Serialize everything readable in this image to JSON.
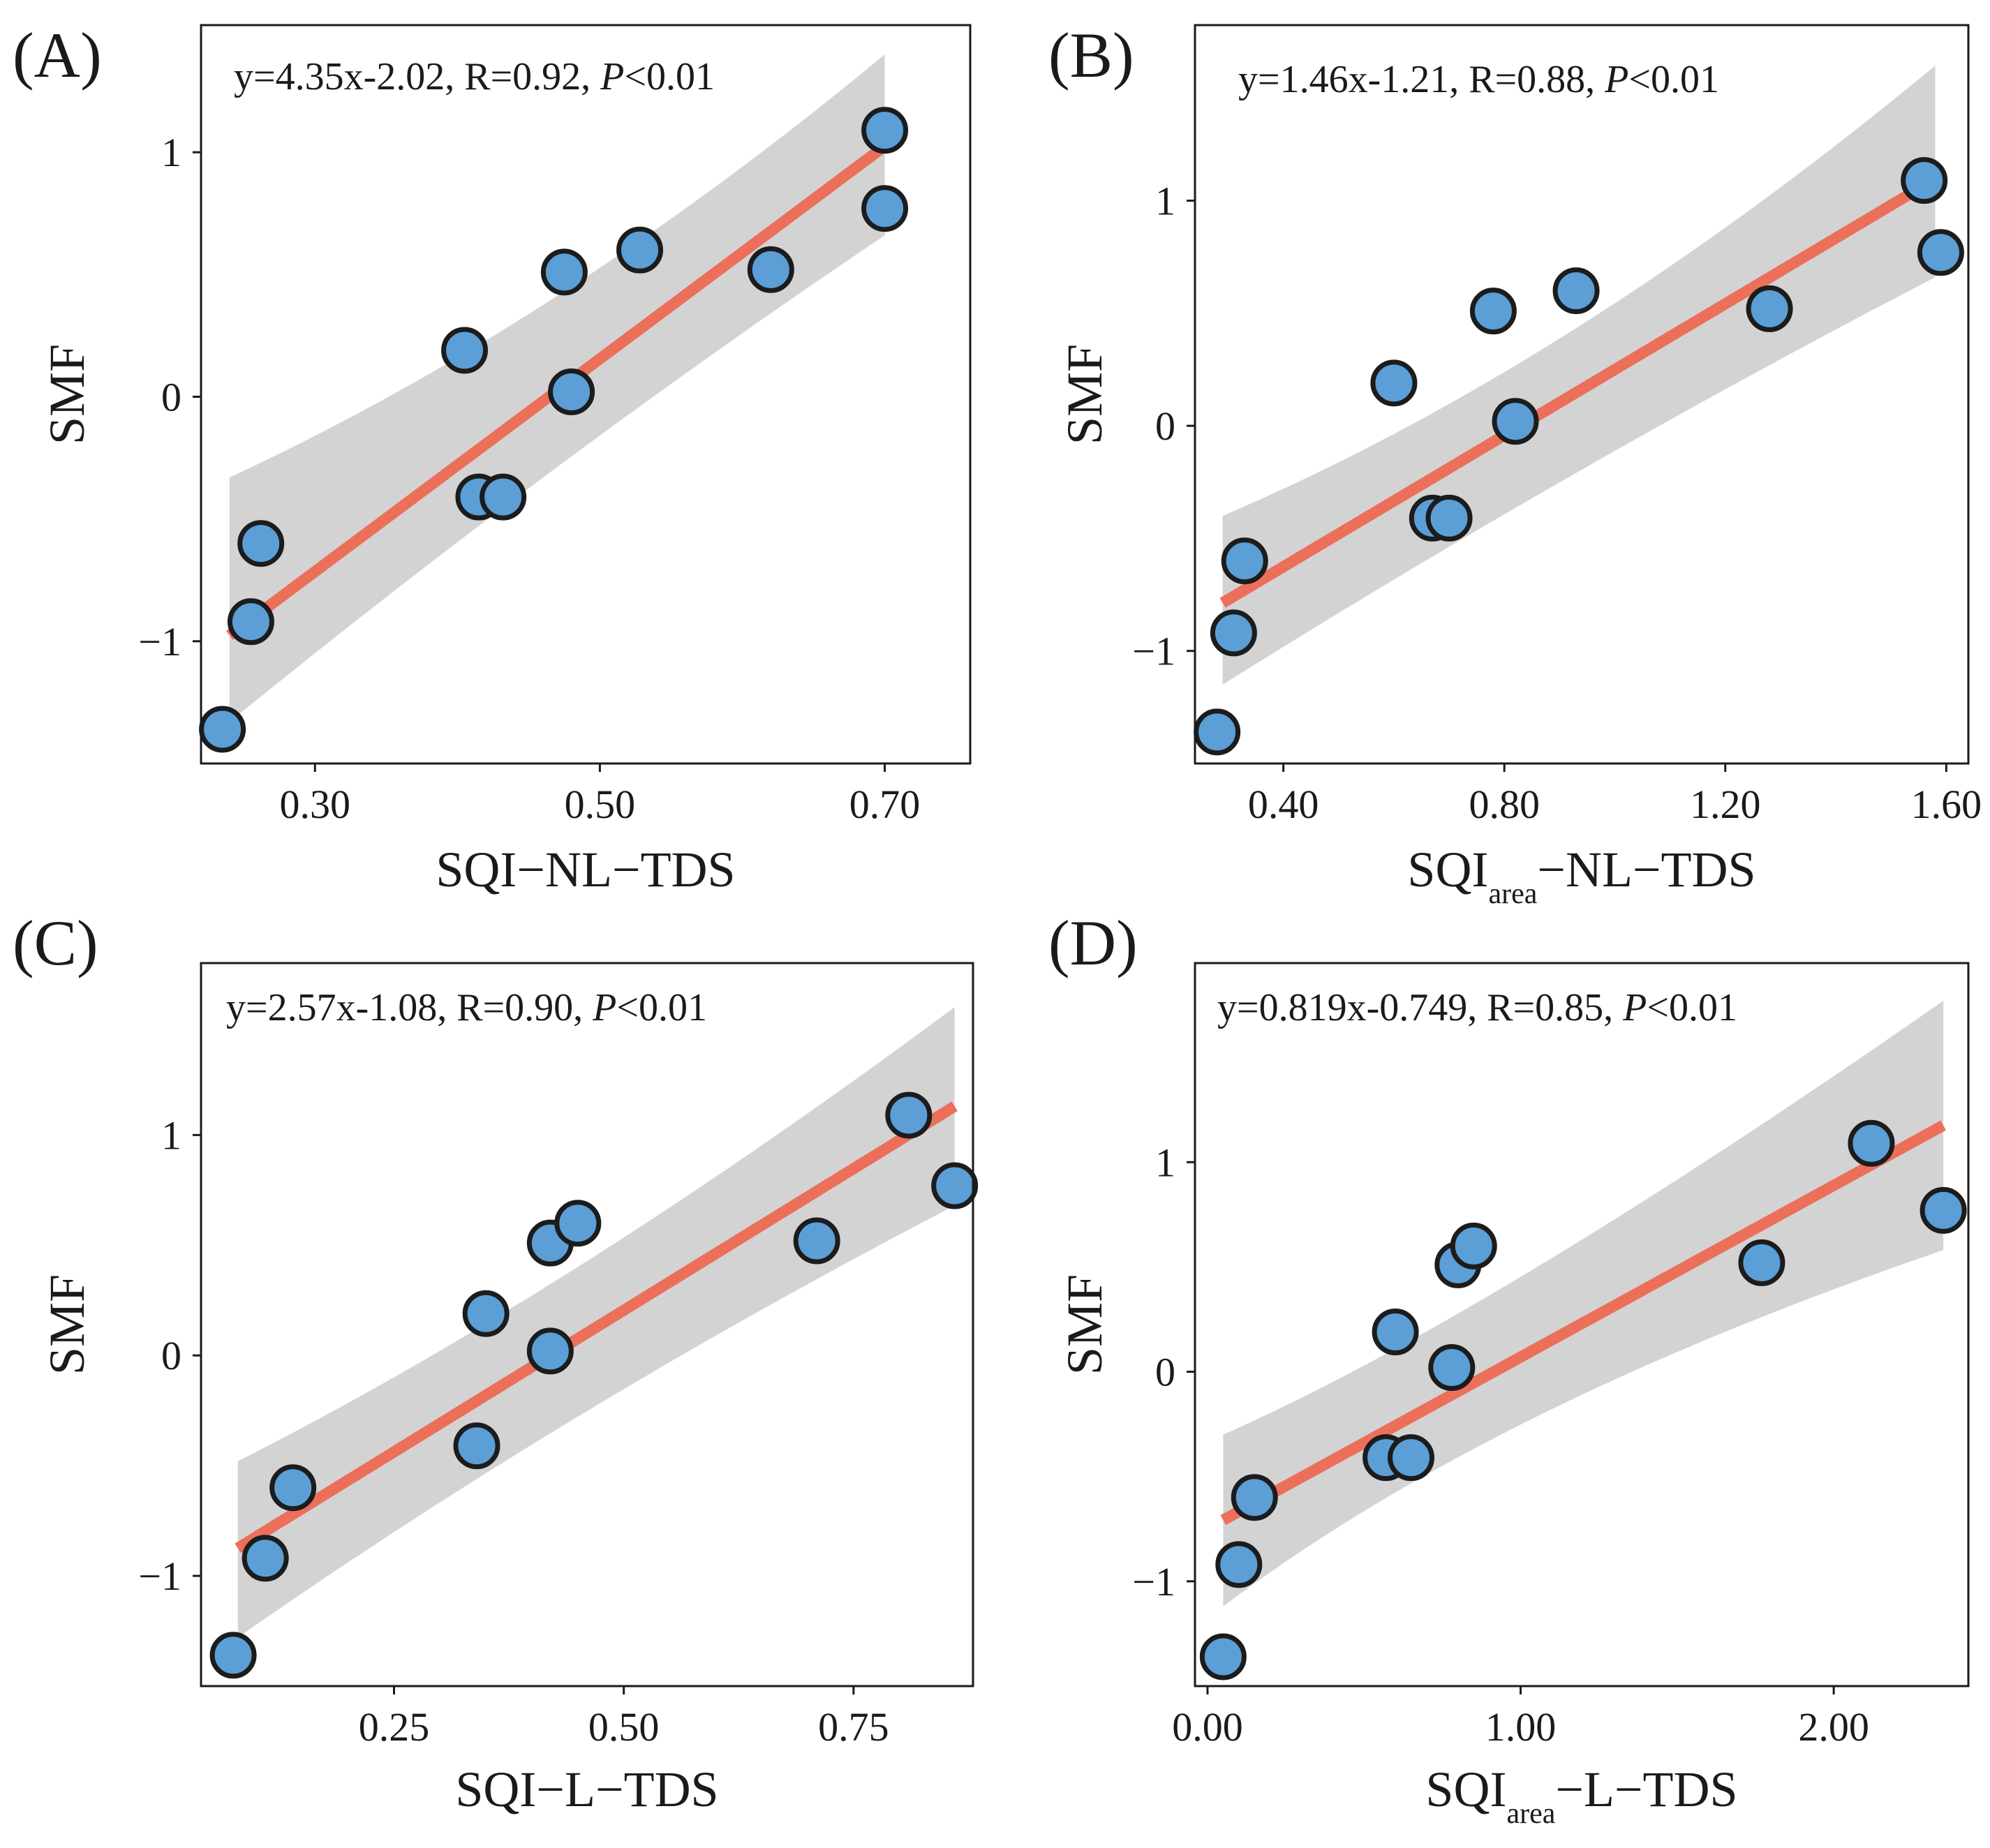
{
  "colors": {
    "point_fill": "#5b9fd6",
    "point_stroke": "#1c1c1c",
    "fit_line": "#ec6f5a",
    "confidence_band": "#d3d3d3",
    "axis": "#1a1a1a"
  },
  "chart_data": [
    {
      "type": "scatter",
      "panel_label": "(A)",
      "equation": "y=4.35x-2.02, R=0.92, ",
      "p_symbol": "P",
      "p_value": "<0.01",
      "xlabel": "SQI−NL−TDS",
      "ylabel": "SMF",
      "xlim": [
        0.22,
        0.76
      ],
      "ylim": [
        -1.5,
        1.52
      ],
      "xticks": [
        0.3,
        0.5,
        0.7
      ],
      "xtick_labels": [
        "0.30",
        "0.50",
        "0.70"
      ],
      "yticks": [
        -1,
        0,
        1
      ],
      "ytick_labels": [
        "−1",
        "0",
        "1"
      ],
      "fit": {
        "slope": 4.35,
        "intercept": -2.02,
        "x_range": [
          0.24,
          0.7
        ]
      },
      "band": {
        "x": [
          0.24,
          0.47,
          0.7
        ],
        "upper": [
          -0.33,
          0.29,
          1.4
        ],
        "lower": [
          -1.33,
          -0.24,
          0.66
        ]
      },
      "points": [
        {
          "x": 0.235,
          "y": -1.36
        },
        {
          "x": 0.255,
          "y": -0.92
        },
        {
          "x": 0.262,
          "y": -0.6
        },
        {
          "x": 0.405,
          "y": 0.19
        },
        {
          "x": 0.415,
          "y": -0.41
        },
        {
          "x": 0.432,
          "y": -0.41
        },
        {
          "x": 0.475,
          "y": 0.51
        },
        {
          "x": 0.48,
          "y": 0.02
        },
        {
          "x": 0.528,
          "y": 0.6
        },
        {
          "x": 0.62,
          "y": 0.52
        },
        {
          "x": 0.7,
          "y": 1.09
        },
        {
          "x": 0.7,
          "y": 0.77
        }
      ]
    },
    {
      "type": "scatter",
      "panel_label": "(B)",
      "equation": "y=1.46x-1.21, R=0.88, ",
      "p_symbol": "P",
      "p_value": "<0.01",
      "xlabel": "SQI",
      "xlabel_sub": "area",
      "xlabel_suffix": "−NL−TDS",
      "ylabel": "SMF",
      "xlim": [
        0.24,
        1.64
      ],
      "ylim": [
        -1.5,
        1.78
      ],
      "xticks": [
        0.4,
        0.8,
        1.2,
        1.6
      ],
      "xtick_labels": [
        "0.40",
        "0.80",
        "1.20",
        "1.60"
      ],
      "yticks": [
        -1,
        0,
        1
      ],
      "ytick_labels": [
        "−1",
        "0",
        "1"
      ],
      "fit": {
        "slope": 1.46,
        "intercept": -1.21,
        "x_range": [
          0.29,
          1.58
        ]
      },
      "band": {
        "x": [
          0.29,
          0.92,
          1.58
        ],
        "upper": [
          -0.4,
          0.26,
          1.6
        ],
        "lower": [
          -1.15,
          -0.18,
          0.66
        ]
      },
      "points": [
        {
          "x": 0.28,
          "y": -1.36
        },
        {
          "x": 0.31,
          "y": -0.92
        },
        {
          "x": 0.33,
          "y": -0.6
        },
        {
          "x": 0.6,
          "y": 0.19
        },
        {
          "x": 0.67,
          "y": -0.41
        },
        {
          "x": 0.7,
          "y": -0.41
        },
        {
          "x": 0.78,
          "y": 0.51
        },
        {
          "x": 0.82,
          "y": 0.02
        },
        {
          "x": 0.93,
          "y": 0.6
        },
        {
          "x": 1.28,
          "y": 0.52
        },
        {
          "x": 1.56,
          "y": 1.09
        },
        {
          "x": 1.59,
          "y": 0.77
        }
      ]
    },
    {
      "type": "scatter",
      "panel_label": "(C)",
      "equation": "y=2.57x-1.08, R=0.90, ",
      "p_symbol": "P",
      "p_value": "<0.01",
      "xlabel": "SQI−L−TDS",
      "ylabel": "SMF",
      "xlim": [
        0.04,
        0.88
      ],
      "ylim": [
        -1.5,
        1.78
      ],
      "xticks": [
        0.25,
        0.5,
        0.75
      ],
      "xtick_labels": [
        "0.25",
        "0.50",
        "0.75"
      ],
      "yticks": [
        -1,
        0,
        1
      ],
      "ytick_labels": [
        "−1",
        "0",
        "1"
      ],
      "fit": {
        "slope": 2.57,
        "intercept": -1.08,
        "x_range": [
          0.08,
          0.86
        ]
      },
      "band": {
        "x": [
          0.08,
          0.44,
          0.86
        ],
        "upper": [
          -0.48,
          0.28,
          1.58
        ],
        "lower": [
          -1.28,
          -0.23,
          0.68
        ]
      },
      "points": [
        {
          "x": 0.075,
          "y": -1.36
        },
        {
          "x": 0.11,
          "y": -0.92
        },
        {
          "x": 0.14,
          "y": -0.6
        },
        {
          "x": 0.35,
          "y": 0.19
        },
        {
          "x": 0.34,
          "y": -0.41
        },
        {
          "x": 0.42,
          "y": 0.51
        },
        {
          "x": 0.42,
          "y": 0.02
        },
        {
          "x": 0.45,
          "y": 0.6
        },
        {
          "x": 0.71,
          "y": 0.52
        },
        {
          "x": 0.81,
          "y": 1.09
        },
        {
          "x": 0.86,
          "y": 0.77
        }
      ]
    },
    {
      "type": "scatter",
      "panel_label": "(D)",
      "equation": "y=0.819x-0.749, R=0.85, ",
      "p_symbol": "P",
      "p_value": "<0.01",
      "xlabel": "SQI",
      "xlabel_sub": "area",
      "xlabel_suffix": "−L−TDS",
      "ylabel": "SMF",
      "xlim": [
        -0.04,
        2.43
      ],
      "ylim": [
        -1.5,
        1.95
      ],
      "xticks": [
        0,
        1,
        2
      ],
      "xtick_labels": [
        "0.00",
        "1.00",
        "2.00"
      ],
      "yticks": [
        -1,
        0,
        1
      ],
      "ytick_labels": [
        "−1",
        "0",
        "1"
      ],
      "fit": {
        "slope": 0.819,
        "intercept": -0.749,
        "x_range": [
          0.05,
          2.35
        ]
      },
      "band": {
        "x": [
          0.05,
          0.9,
          2.35
        ],
        "upper": [
          -0.3,
          0.26,
          1.77
        ],
        "lower": [
          -1.12,
          -0.16,
          0.58
        ]
      },
      "points": [
        {
          "x": 0.05,
          "y": -1.36
        },
        {
          "x": 0.1,
          "y": -0.92
        },
        {
          "x": 0.15,
          "y": -0.6
        },
        {
          "x": 0.6,
          "y": 0.19
        },
        {
          "x": 0.57,
          "y": -0.41
        },
        {
          "x": 0.65,
          "y": -0.41
        },
        {
          "x": 0.8,
          "y": 0.51
        },
        {
          "x": 0.78,
          "y": 0.02
        },
        {
          "x": 0.85,
          "y": 0.6
        },
        {
          "x": 1.77,
          "y": 0.52
        },
        {
          "x": 2.12,
          "y": 1.09
        },
        {
          "x": 2.35,
          "y": 0.77
        }
      ]
    }
  ]
}
